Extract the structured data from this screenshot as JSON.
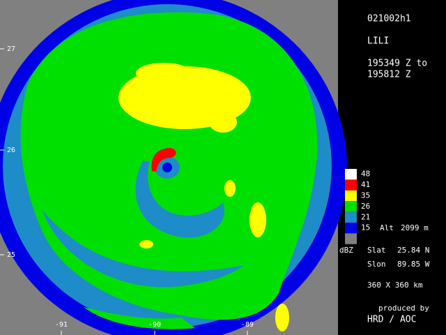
{
  "header": {
    "flight": "021002h1",
    "storm": "LILI",
    "time_start": "195349 Z to",
    "time_end": "195812 Z"
  },
  "legend": {
    "items": [
      {
        "label": "48",
        "color": "#ffffff"
      },
      {
        "label": "41",
        "color": "#ff0000"
      },
      {
        "label": "35",
        "color": "#ffff00"
      },
      {
        "label": "26",
        "color": "#00e000"
      },
      {
        "label": "21",
        "color": "#1e8cc8"
      },
      {
        "label": "15",
        "color": "#0000e6"
      },
      {
        "label": null,
        "color": "#808080"
      }
    ],
    "unit": "dBZ"
  },
  "altitude": {
    "label": "Alt",
    "value": "2099 m"
  },
  "center": {
    "slat_label": "Slat",
    "slat": "25.84 N",
    "slon_label": "Slon",
    "slon": "89.85 W"
  },
  "domain_size": "360 X 360 km",
  "credit": {
    "line1": "produced by",
    "line2": "HRD / AOC"
  },
  "map": {
    "lat_labels": [
      "27",
      "26",
      "25"
    ],
    "lon_labels": [
      "-91",
      "-90",
      "-89"
    ]
  }
}
